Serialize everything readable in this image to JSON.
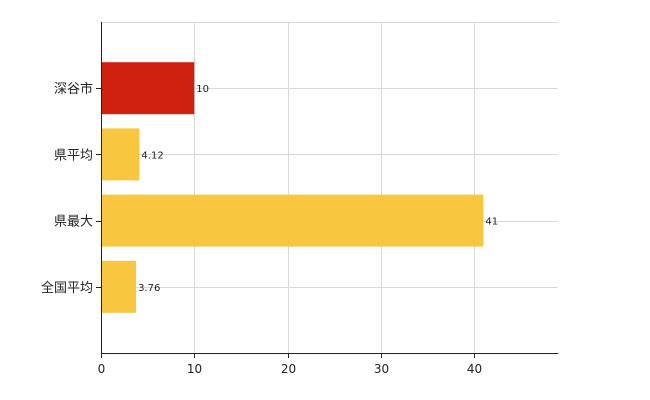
{
  "chart_data": {
    "type": "bar",
    "orientation": "horizontal",
    "categories": [
      "深谷市",
      "県平均",
      "県最大",
      "全国平均"
    ],
    "values": [
      10,
      4.12,
      41,
      3.76
    ],
    "value_labels": [
      "10",
      "4.12",
      "41",
      "3.76"
    ],
    "colors": [
      "#D0200F",
      "#F9C640",
      "#F9C640",
      "#F9C640"
    ],
    "xlim": [
      0,
      49
    ],
    "xticks": [
      0,
      10,
      20,
      30,
      40
    ],
    "grid": true,
    "legend": "none"
  }
}
